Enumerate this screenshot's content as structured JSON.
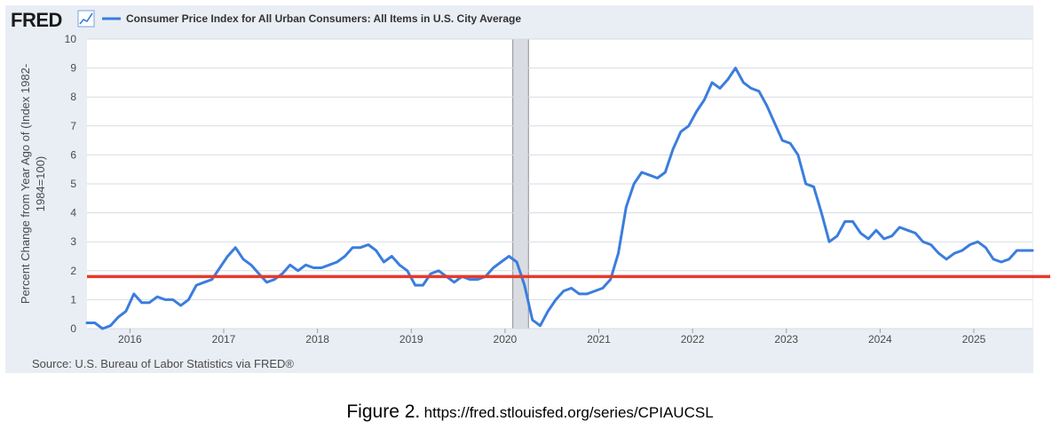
{
  "header": {
    "logo": "FRED",
    "logo_icon": "trend-graph-icon",
    "legend_label": "Consumer Price Index for All Urban Consumers: All Items in U.S. City Average"
  },
  "source": "Source: U.S. Bureau of Labor Statistics via FRED®",
  "caption": {
    "label": "Figure 2.",
    "url": "https://fred.stlouisfed.org/series/CPIAUCSL"
  },
  "chart_data": {
    "type": "line",
    "title": "",
    "xlabel": "",
    "ylabel": "Percent Change from Year Ago of (Index 1982-1984=100)",
    "ylabel_lines": [
      "Percent Change from Year Ago of (Index 1982-",
      "1984=100)"
    ],
    "xlim": [
      2015.542,
      2025.625
    ],
    "ylim": [
      0,
      10
    ],
    "x_ticks": [
      {
        "x": 2016,
        "label": "2016"
      },
      {
        "x": 2017,
        "label": "2017"
      },
      {
        "x": 2018,
        "label": "2018"
      },
      {
        "x": 2019,
        "label": "2019"
      },
      {
        "x": 2020,
        "label": "2020"
      },
      {
        "x": 2021,
        "label": "2021"
      },
      {
        "x": 2022,
        "label": "2022"
      },
      {
        "x": 2023,
        "label": "2023"
      },
      {
        "x": 2024,
        "label": "2024"
      },
      {
        "x": 2025,
        "label": "2025"
      }
    ],
    "y_ticks": [
      0,
      1,
      2,
      3,
      4,
      5,
      6,
      7,
      8,
      9,
      10
    ],
    "grid": true,
    "recession_band": {
      "start": 2020.083,
      "end": 2020.25
    },
    "reference_line": {
      "value": 1.8,
      "color": "#e53a2a"
    },
    "series": [
      {
        "color": "#3b7ddd",
        "x": [
          2015.542,
          2015.625,
          2015.708,
          2015.792,
          2015.875,
          2015.958,
          2016.042,
          2016.125,
          2016.208,
          2016.292,
          2016.375,
          2016.458,
          2016.542,
          2016.625,
          2016.708,
          2016.792,
          2016.875,
          2016.958,
          2017.042,
          2017.125,
          2017.208,
          2017.292,
          2017.375,
          2017.458,
          2017.542,
          2017.625,
          2017.708,
          2017.792,
          2017.875,
          2017.958,
          2018.042,
          2018.125,
          2018.208,
          2018.292,
          2018.375,
          2018.458,
          2018.542,
          2018.625,
          2018.708,
          2018.792,
          2018.875,
          2018.958,
          2019.042,
          2019.125,
          2019.208,
          2019.292,
          2019.375,
          2019.458,
          2019.542,
          2019.625,
          2019.708,
          2019.792,
          2019.875,
          2019.958,
          2020.042,
          2020.125,
          2020.208,
          2020.292,
          2020.375,
          2020.458,
          2020.542,
          2020.625,
          2020.708,
          2020.792,
          2020.875,
          2020.958,
          2021.042,
          2021.125,
          2021.208,
          2021.292,
          2021.375,
          2021.458,
          2021.542,
          2021.625,
          2021.708,
          2021.792,
          2021.875,
          2021.958,
          2022.042,
          2022.125,
          2022.208,
          2022.292,
          2022.375,
          2022.458,
          2022.542,
          2022.625,
          2022.708,
          2022.792,
          2022.875,
          2022.958,
          2023.042,
          2023.125,
          2023.208,
          2023.292,
          2023.375,
          2023.458,
          2023.542,
          2023.625,
          2023.708,
          2023.792,
          2023.875,
          2023.958,
          2024.042,
          2024.125,
          2024.208,
          2024.292,
          2024.375,
          2024.458,
          2024.542,
          2024.625,
          2024.708,
          2024.792,
          2024.875,
          2024.958,
          2025.042,
          2025.125,
          2025.208,
          2025.292,
          2025.375,
          2025.458,
          2025.542,
          2025.625
        ],
        "y": [
          0.2,
          0.2,
          0.0,
          0.1,
          0.4,
          0.6,
          1.2,
          0.9,
          0.9,
          1.1,
          1.0,
          1.0,
          0.8,
          1.0,
          1.5,
          1.6,
          1.7,
          2.1,
          2.5,
          2.8,
          2.4,
          2.2,
          1.9,
          1.6,
          1.7,
          1.9,
          2.2,
          2.0,
          2.2,
          2.1,
          2.1,
          2.2,
          2.3,
          2.5,
          2.8,
          2.8,
          2.9,
          2.7,
          2.3,
          2.5,
          2.2,
          2.0,
          1.5,
          1.5,
          1.9,
          2.0,
          1.8,
          1.6,
          1.8,
          1.7,
          1.7,
          1.8,
          2.1,
          2.3,
          2.5,
          2.3,
          1.5,
          0.3,
          0.1,
          0.6,
          1.0,
          1.3,
          1.4,
          1.2,
          1.2,
          1.3,
          1.4,
          1.7,
          2.6,
          4.2,
          5.0,
          5.4,
          5.3,
          5.2,
          5.4,
          6.2,
          6.8,
          7.0,
          7.5,
          7.9,
          8.5,
          8.3,
          8.6,
          9.0,
          8.5,
          8.3,
          8.2,
          7.7,
          7.1,
          6.5,
          6.4,
          6.0,
          5.0,
          4.9,
          4.0,
          3.0,
          3.2,
          3.7,
          3.7,
          3.3,
          3.1,
          3.4,
          3.1,
          3.2,
          3.5,
          3.4,
          3.3,
          3.0,
          2.9,
          2.6,
          2.4,
          2.6,
          2.7,
          2.9,
          3.0,
          2.8,
          2.4,
          2.3,
          2.4,
          2.7,
          2.7,
          2.7
        ]
      }
    ]
  }
}
